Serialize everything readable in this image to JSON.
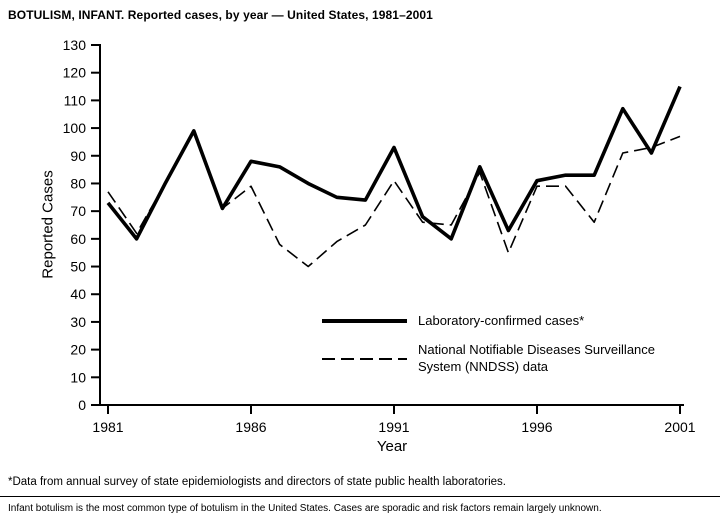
{
  "title": "BOTULISM, INFANT. Reported cases, by year — United States, 1981–2001",
  "chart_data": {
    "type": "line",
    "x": [
      1981,
      1982,
      1983,
      1984,
      1985,
      1986,
      1987,
      1988,
      1989,
      1990,
      1991,
      1992,
      1993,
      1994,
      1995,
      1996,
      1997,
      1998,
      1999,
      2000,
      2001
    ],
    "xticks": [
      1981,
      1986,
      1991,
      1996,
      2001
    ],
    "yticks": [
      0,
      10,
      20,
      30,
      40,
      50,
      60,
      70,
      80,
      90,
      100,
      110,
      120,
      130
    ],
    "ylim": [
      0,
      130
    ],
    "xlabel": "Year",
    "ylabel": "Reported Cases",
    "grid": false,
    "legend_position": "lower right",
    "series": [
      {
        "name": "Laboratory-confirmed cases*",
        "dashed": false,
        "values": [
          73,
          60,
          80,
          99,
          71,
          88,
          86,
          80,
          75,
          74,
          93,
          68,
          60,
          86,
          63,
          81,
          83,
          83,
          107,
          91,
          115
        ]
      },
      {
        "name": "National Notifiable Diseases Surveillance System (NNDSS) data",
        "dashed": true,
        "values": [
          77,
          62,
          80,
          99,
          71,
          79,
          58,
          50,
          59,
          65,
          81,
          66,
          65,
          84,
          55,
          79,
          79,
          66,
          91,
          93,
          97
        ]
      }
    ],
    "legend": [
      {
        "label": "Laboratory-confirmed cases*"
      },
      {
        "label": "National Notifiable Diseases Surveillance System (NNDSS) data"
      }
    ]
  },
  "footnotes": [
    "*Data from annual survey of state epidemiologists and directors of state public health laboratories.",
    "Infant botulism is the most common type of botulism in the United States. Cases are sporadic and risk factors remain largely unknown."
  ]
}
